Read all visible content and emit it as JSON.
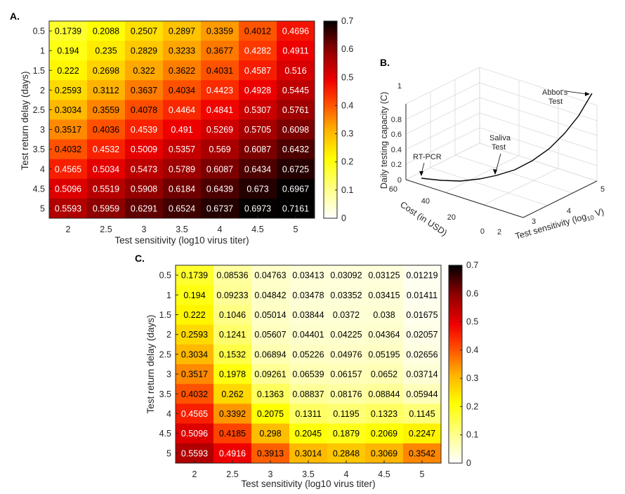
{
  "chart_data": [
    {
      "type": "heatmap",
      "panel_label": "A.",
      "title": "",
      "xlabel": "Test sensitivity (log10 virus titer)",
      "ylabel": "Test return delay (days)",
      "x_ticks": [
        "2",
        "2.5",
        "3",
        "3.5",
        "4",
        "4.5",
        "5"
      ],
      "y_ticks": [
        "0.5",
        "1",
        "1.5",
        "2",
        "2.5",
        "3",
        "3.5",
        "4",
        "4.5",
        "5"
      ],
      "colormap": "hot-reversed",
      "clim": [
        0,
        0.7
      ],
      "colorbar_ticks": [
        "0",
        "0.1",
        "0.2",
        "0.3",
        "0.4",
        "0.5",
        "0.6",
        "0.7"
      ],
      "values": [
        [
          0.1739,
          0.2088,
          0.2507,
          0.2897,
          0.3359,
          0.4012,
          0.4696
        ],
        [
          0.194,
          0.235,
          0.2829,
          0.3233,
          0.3677,
          0.4282,
          0.4911
        ],
        [
          0.222,
          0.2698,
          0.322,
          0.3622,
          0.4031,
          0.4587,
          0.516
        ],
        [
          0.2593,
          0.3112,
          0.3637,
          0.4034,
          0.4423,
          0.4928,
          0.5445
        ],
        [
          0.3034,
          0.3559,
          0.4078,
          0.4464,
          0.4841,
          0.5307,
          0.5761
        ],
        [
          0.3517,
          0.4036,
          0.4539,
          0.491,
          0.5269,
          0.5705,
          0.6098
        ],
        [
          0.4032,
          0.4532,
          0.5009,
          0.5357,
          0.569,
          0.6087,
          0.6432
        ],
        [
          0.4565,
          0.5034,
          0.5473,
          0.5789,
          0.6087,
          0.6434,
          0.6725
        ],
        [
          0.5096,
          0.5519,
          0.5908,
          0.6184,
          0.6439,
          0.673,
          0.6967
        ],
        [
          0.5593,
          0.5959,
          0.6291,
          0.6524,
          0.6737,
          0.6973,
          0.7161
        ]
      ]
    },
    {
      "type": "line",
      "panel_label": "B.",
      "title": "",
      "xlabel": "Test sensitivity (log",
      "xlabel_sub": "10",
      "xlabel_end": " V)",
      "ylabel": "Cost (in USD)",
      "zlabel": "Daily testing capacity (C)",
      "x_ticks": [
        "2",
        "3",
        "4",
        "5"
      ],
      "y_ticks": [
        "0",
        "20",
        "40",
        "60"
      ],
      "z_ticks": [
        "0",
        "0.2",
        "0.4",
        "0.6",
        "0.8",
        "1"
      ],
      "annotations": [
        "RT-PCR",
        "Saliva",
        "Test",
        "Abbot's",
        "Test"
      ]
    },
    {
      "type": "heatmap",
      "panel_label": "C.",
      "title": "",
      "xlabel": "Test sensitivity (log10 virus titer)",
      "ylabel": "Test return delay (days)",
      "x_ticks": [
        "2",
        "2.5",
        "3",
        "3.5",
        "4",
        "4.5",
        "5"
      ],
      "y_ticks": [
        "0.5",
        "1",
        "1.5",
        "2",
        "2.5",
        "3",
        "3.5",
        "4",
        "4.5",
        "5"
      ],
      "colormap": "hot-reversed",
      "clim": [
        0,
        0.7
      ],
      "colorbar_ticks": [
        "0",
        "0.1",
        "0.2",
        "0.3",
        "0.4",
        "0.5",
        "0.6",
        "0.7"
      ],
      "values": [
        [
          0.1739,
          0.08536,
          0.04763,
          0.03413,
          0.03092,
          0.03125,
          0.01219
        ],
        [
          0.194,
          0.09233,
          0.04842,
          0.03478,
          0.03352,
          0.03415,
          0.01411
        ],
        [
          0.222,
          0.1046,
          0.05014,
          0.03844,
          0.0372,
          0.038,
          0.01675
        ],
        [
          0.2593,
          0.1241,
          0.05607,
          0.04401,
          0.04225,
          0.04364,
          0.02057
        ],
        [
          0.3034,
          0.1532,
          0.06894,
          0.05226,
          0.04976,
          0.05195,
          0.02656
        ],
        [
          0.3517,
          0.1978,
          0.09261,
          0.06539,
          0.06157,
          0.0652,
          0.03714
        ],
        [
          0.4032,
          0.262,
          0.1363,
          0.08837,
          0.08176,
          0.08844,
          0.05944
        ],
        [
          0.4565,
          0.3392,
          0.2075,
          0.1311,
          0.1195,
          0.1323,
          0.1145
        ],
        [
          0.5096,
          0.4185,
          0.298,
          0.2045,
          0.1879,
          0.2069,
          0.2247
        ],
        [
          0.5593,
          0.4916,
          0.3913,
          0.3014,
          0.2848,
          0.3069,
          0.3542
        ]
      ]
    }
  ]
}
